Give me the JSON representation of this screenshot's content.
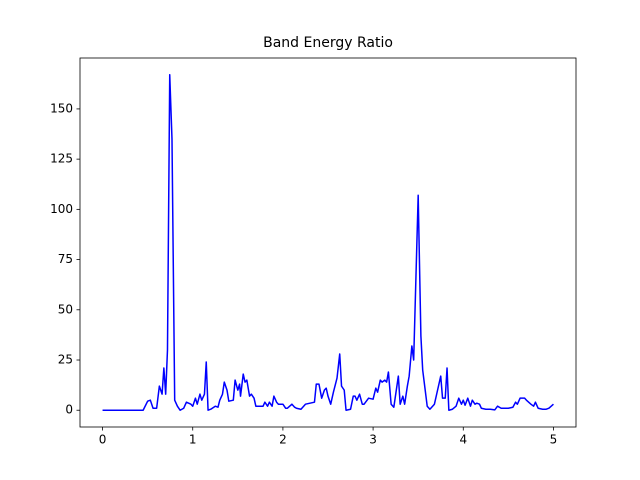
{
  "chart_data": {
    "type": "line",
    "title": "Band Energy Ratio",
    "x": [
      0,
      0.45,
      0.5,
      0.53,
      0.56,
      0.6,
      0.63,
      0.66,
      0.68,
      0.7,
      0.72,
      0.745,
      0.77,
      0.8,
      0.83,
      0.86,
      0.9,
      0.93,
      0.98,
      1.0,
      1.03,
      1.05,
      1.08,
      1.1,
      1.13,
      1.15,
      1.17,
      1.2,
      1.25,
      1.28,
      1.3,
      1.33,
      1.35,
      1.38,
      1.4,
      1.45,
      1.47,
      1.5,
      1.52,
      1.53,
      1.56,
      1.58,
      1.6,
      1.63,
      1.65,
      1.68,
      1.7,
      1.75,
      1.78,
      1.8,
      1.83,
      1.85,
      1.88,
      1.9,
      1.93,
      1.95,
      2.0,
      2.03,
      2.05,
      2.1,
      2.13,
      2.15,
      2.2,
      2.25,
      2.3,
      2.35,
      2.37,
      2.4,
      2.43,
      2.46,
      2.48,
      2.5,
      2.53,
      2.56,
      2.6,
      2.63,
      2.65,
      2.68,
      2.7,
      2.75,
      2.78,
      2.8,
      2.82,
      2.85,
      2.88,
      2.9,
      2.95,
      3.0,
      3.03,
      3.05,
      3.08,
      3.1,
      3.13,
      3.15,
      3.17,
      3.2,
      3.23,
      3.28,
      3.3,
      3.33,
      3.35,
      3.38,
      3.4,
      3.43,
      3.45,
      3.5,
      3.53,
      3.55,
      3.6,
      3.63,
      3.68,
      3.72,
      3.75,
      3.77,
      3.8,
      3.82,
      3.84,
      3.88,
      3.92,
      3.95,
      3.98,
      4.0,
      4.02,
      4.05,
      4.08,
      4.1,
      4.13,
      4.15,
      4.18,
      4.2,
      4.25,
      4.3,
      4.35,
      4.38,
      4.42,
      4.45,
      4.5,
      4.55,
      4.58,
      4.6,
      4.63,
      4.68,
      4.7,
      4.75,
      4.78,
      4.8,
      4.83,
      4.88,
      4.92,
      4.95,
      5.0
    ],
    "values": [
      0,
      0,
      4.5,
      5,
      1,
      1,
      12,
      8,
      21,
      8,
      30,
      167,
      135,
      5,
      2,
      0,
      1,
      4,
      3,
      2,
      6,
      3,
      8,
      5,
      8,
      24,
      0,
      0.5,
      2,
      1.5,
      5,
      8,
      14,
      10,
      4.5,
      5,
      15,
      10,
      13,
      7,
      18,
      14,
      15,
      7,
      8,
      6,
      2,
      2,
      2,
      4,
      2,
      4,
      2,
      7,
      4,
      3,
      3,
      1,
      1,
      3,
      1.5,
      1,
      0.5,
      3,
      3.5,
      4,
      13,
      13,
      6,
      10,
      11,
      7,
      3,
      9,
      16,
      28,
      12,
      10,
      0,
      0.5,
      7,
      7,
      5,
      8,
      3,
      3,
      6,
      5.5,
      11,
      9,
      15,
      14,
      15,
      14,
      19,
      3,
      1.5,
      17,
      3,
      7,
      3,
      12,
      17,
      32,
      25,
      107,
      37,
      20,
      2,
      0.5,
      3,
      11,
      17,
      6,
      6,
      21,
      0,
      0.5,
      2,
      6,
      3,
      5,
      2.5,
      6,
      2,
      5,
      3,
      3.5,
      3,
      1,
      0.5,
      0.5,
      0.2,
      2,
      1,
      1,
      1,
      1.5,
      4,
      3,
      6,
      6,
      5,
      3,
      2,
      4,
      1,
      0.5,
      0.5,
      1,
      3
    ],
    "color": "#0000ff",
    "xlim": [
      -0.25,
      5.25
    ],
    "xticks": [
      0,
      1,
      2,
      3,
      4,
      5
    ],
    "ylim": [
      -8.35,
      175.35
    ],
    "yticks": [
      0,
      25,
      50,
      75,
      100,
      125,
      150
    ]
  }
}
